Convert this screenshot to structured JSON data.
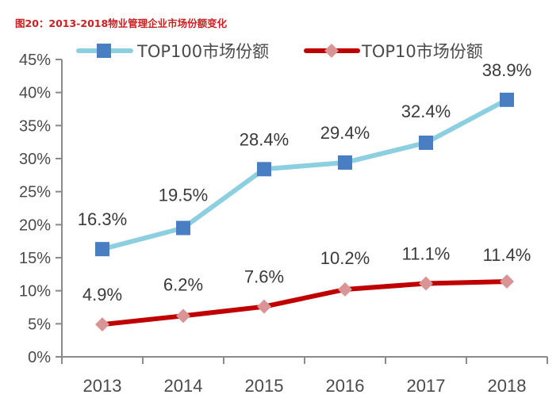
{
  "title": "图20：2013-2018物业管理企业市场份额变化",
  "colors": {
    "title": "#cc1f1f",
    "axis": "#8a8a8a",
    "top100_line": "#8ccfe0",
    "top100_marker": "#4a7ec3",
    "top10_line": "#c00000",
    "top10_marker": "#d99595"
  },
  "chart_data": {
    "type": "line",
    "title": "图20：2013-2018物业管理企业市场份额变化",
    "xlabel": "",
    "ylabel": "",
    "categories": [
      "2013",
      "2014",
      "2015",
      "2016",
      "2017",
      "2018"
    ],
    "ylim": [
      0,
      45
    ],
    "yticks": [
      0,
      5,
      10,
      15,
      20,
      25,
      30,
      35,
      40,
      45
    ],
    "ytick_labels": [
      "0%",
      "5%",
      "10%",
      "15%",
      "20%",
      "25%",
      "30%",
      "35%",
      "40%",
      "45%"
    ],
    "grid": false,
    "legend_position": "top",
    "series": [
      {
        "name": "TOP100市场份额",
        "marker": "square",
        "values": [
          16.3,
          19.5,
          28.4,
          29.4,
          32.4,
          38.9
        ],
        "labels": [
          "16.3%",
          "19.5%",
          "28.4%",
          "29.4%",
          "32.4%",
          "38.9%"
        ]
      },
      {
        "name": "TOP10市场份额",
        "marker": "diamond",
        "values": [
          4.9,
          6.2,
          7.6,
          10.2,
          11.1,
          11.4
        ],
        "labels": [
          "4.9%",
          "6.2%",
          "7.6%",
          "10.2%",
          "11.1%",
          "11.4%"
        ]
      }
    ]
  }
}
